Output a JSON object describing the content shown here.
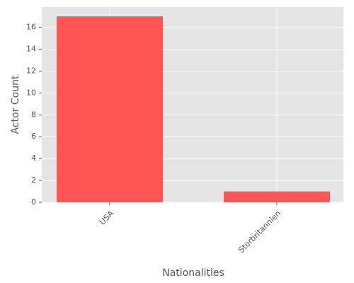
{
  "chart_data": {
    "type": "bar",
    "categories": [
      "USA",
      "Storbritannien"
    ],
    "values": [
      17,
      1
    ],
    "color": "#ff5555",
    "xlabel": "Nationalities",
    "ylabel": "Actor Count",
    "ylim": [
      0,
      17.85
    ],
    "yticks": [
      0,
      2,
      4,
      6,
      8,
      10,
      12,
      14,
      16
    ],
    "grid": true
  }
}
